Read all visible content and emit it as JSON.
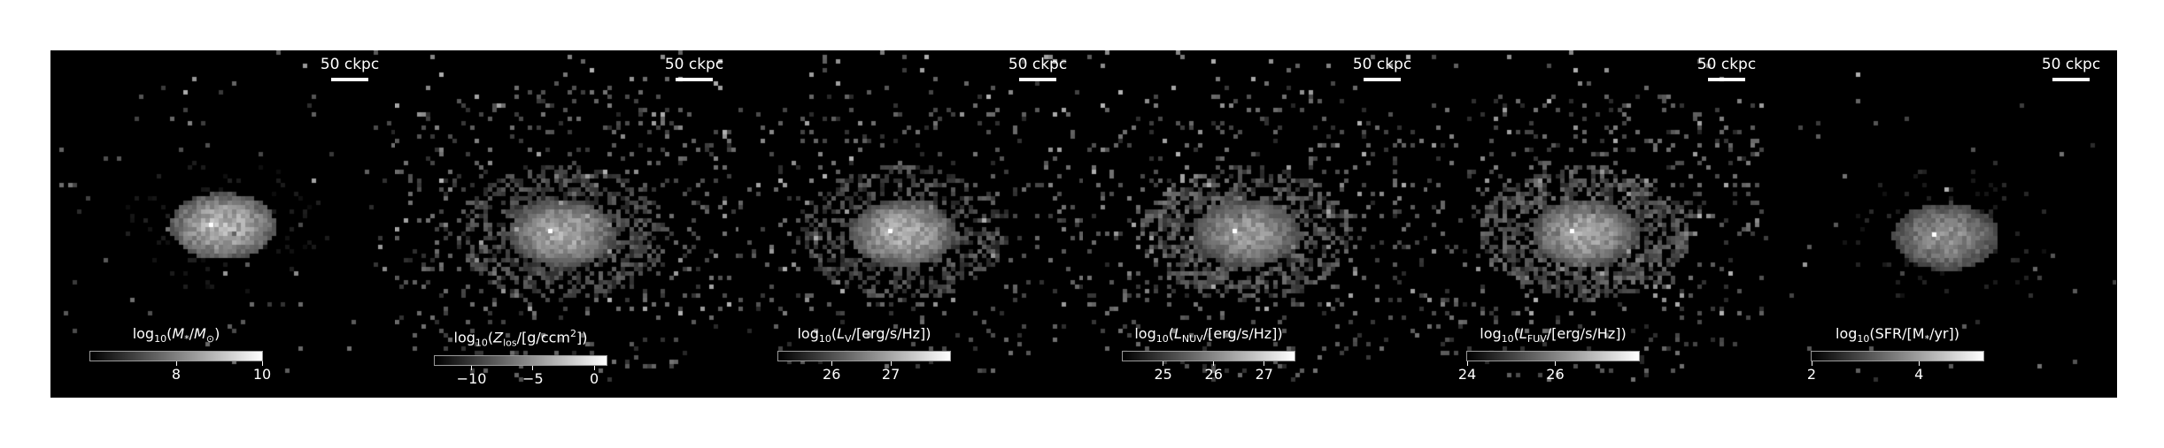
{
  "figure": {
    "panels": [
      {
        "scale_label": "50 ckpc",
        "colorbar": {
          "title_html": "log<sub>10</sub>(<i>M</i><sub>*</sub>/<i>M</i><sub>⊙</sub>)",
          "vmin": 6.0,
          "vmax": 10.0,
          "ticks": [
            {
              "value": 8,
              "label": "8"
            },
            {
              "value": 10,
              "label": "10"
            }
          ]
        }
      },
      {
        "scale_label": "50 ckpc",
        "colorbar": {
          "title_html": "log<sub>10</sub>(<i>Z</i><sub>los</sub>/[g/ccm<sup>2</sup>])",
          "vmin": -13.0,
          "vmax": 1.0,
          "ticks": [
            {
              "value": -10,
              "label": "−10"
            },
            {
              "value": -5,
              "label": "−5"
            },
            {
              "value": 0,
              "label": "0"
            }
          ]
        }
      },
      {
        "scale_label": "50 ckpc",
        "colorbar": {
          "title_html": "log<sub>10</sub>(<i>L</i><sub>V</sub>/[erg/s/Hz])",
          "vmin": 25.1,
          "vmax": 28.0,
          "ticks": [
            {
              "value": 26,
              "label": "26"
            },
            {
              "value": 27,
              "label": "27"
            }
          ]
        }
      },
      {
        "scale_label": "50 ckpc",
        "colorbar": {
          "title_html": "log<sub>10</sub>(<i>L</i><sub>NUV</sub>/[erg/s/Hz])",
          "vmin": 24.2,
          "vmax": 27.6,
          "ticks": [
            {
              "value": 25,
              "label": "25"
            },
            {
              "value": 26,
              "label": "26"
            },
            {
              "value": 27,
              "label": "27"
            }
          ]
        }
      },
      {
        "scale_label": "50 ckpc",
        "colorbar": {
          "title_html": "log<sub>10</sub>(<i>L</i><sub>FUV</sub>/[erg/s/Hz])",
          "vmin": 24.0,
          "vmax": 27.9,
          "ticks": [
            {
              "value": 24,
              "label": "24"
            },
            {
              "value": 26,
              "label": "26"
            }
          ]
        }
      },
      {
        "scale_label": "50 ckpc",
        "colorbar": {
          "title_html": "log<sub>10</sub>(SFR/[M<sub>*</sub>/yr])",
          "vmin": 2.0,
          "vmax": 5.2,
          "ticks": [
            {
              "value": 2,
              "label": "2"
            },
            {
              "value": 4,
              "label": "4"
            }
          ]
        }
      }
    ]
  }
}
